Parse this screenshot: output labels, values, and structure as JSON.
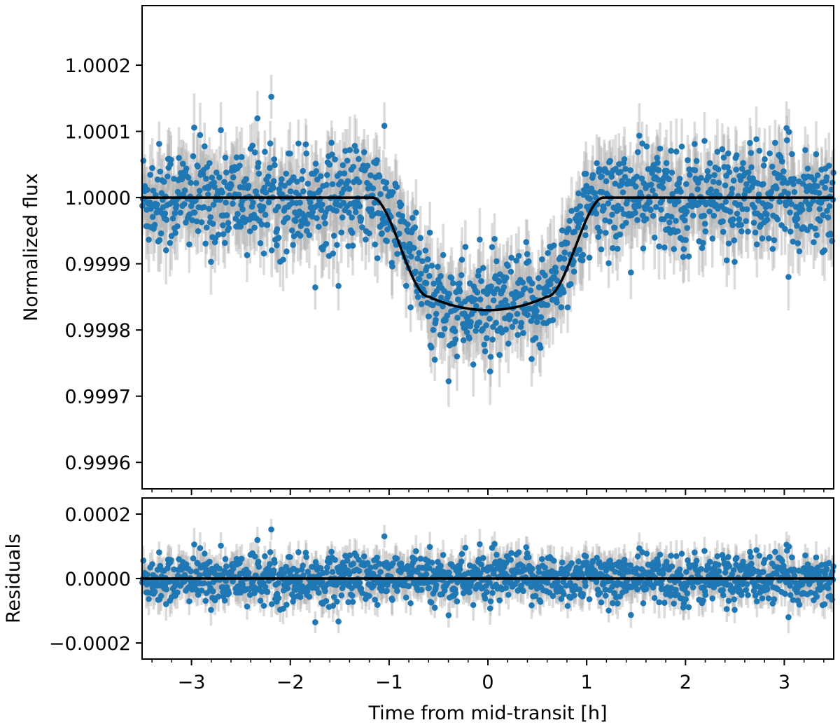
{
  "chart_data": [
    {
      "type": "scatter",
      "panel": "top",
      "xlabel": "",
      "ylabel": "Normalized flux",
      "xlim": [
        -3.5,
        3.5
      ],
      "ylim": [
        0.99956,
        1.00029
      ],
      "x_ticks": [
        -3,
        -2,
        -1,
        0,
        1,
        2,
        3
      ],
      "y_ticks": [
        0.9996,
        0.9997,
        0.9998,
        0.9999,
        1.0,
        1.0001,
        1.0002
      ],
      "y_tick_labels": [
        "0.9996",
        "0.9997",
        "0.9998",
        "0.9999",
        "1.0000",
        "1.0001",
        "1.0002"
      ],
      "grid": false,
      "n_points": 1400,
      "point_color": "#1f77b4",
      "errorbar_color": "#b0b0b0",
      "typical_errorbar": 4e-05,
      "scatter_rms": 4e-05,
      "model": {
        "name": "",
        "color": "#000000",
        "baseline": 1.0,
        "depth": 0.00017,
        "t1": -1.17,
        "t2": -0.6,
        "t3": 0.6,
        "t4": 1.17,
        "points": [
          [
            -3.5,
            1.0
          ],
          [
            -1.17,
            1.0
          ],
          [
            -0.9,
            0.99995
          ],
          [
            -0.6,
            0.99985
          ],
          [
            -0.3,
            0.99983
          ],
          [
            0,
            0.99983
          ],
          [
            0.3,
            0.99983
          ],
          [
            0.6,
            0.99985
          ],
          [
            0.9,
            0.99995
          ],
          [
            1.17,
            1.0
          ],
          [
            3.5,
            1.0
          ]
        ]
      }
    },
    {
      "type": "scatter",
      "panel": "bottom",
      "xlabel": "Time from mid-transit [h]",
      "ylabel": "Residuals",
      "xlim": [
        -3.5,
        3.5
      ],
      "ylim": [
        -0.00025,
        0.00025
      ],
      "x_ticks": [
        -3,
        -2,
        -1,
        0,
        1,
        2,
        3
      ],
      "x_tick_labels": [
        "−3",
        "−2",
        "−1",
        "0",
        "1",
        "2",
        "3"
      ],
      "y_ticks": [
        -0.0002,
        0.0,
        0.0002
      ],
      "y_tick_labels": [
        "−0.0002",
        "0.0000",
        "0.0002"
      ],
      "grid": false,
      "n_points": 1400,
      "point_color": "#1f77b4",
      "errorbar_color": "#b0b0b0",
      "typical_errorbar": 4e-05,
      "scatter_rms": 4e-05,
      "model": {
        "name": "",
        "color": "#000000",
        "points": [
          [
            -3.5,
            0.0
          ],
          [
            3.5,
            0.0
          ]
        ]
      }
    }
  ]
}
